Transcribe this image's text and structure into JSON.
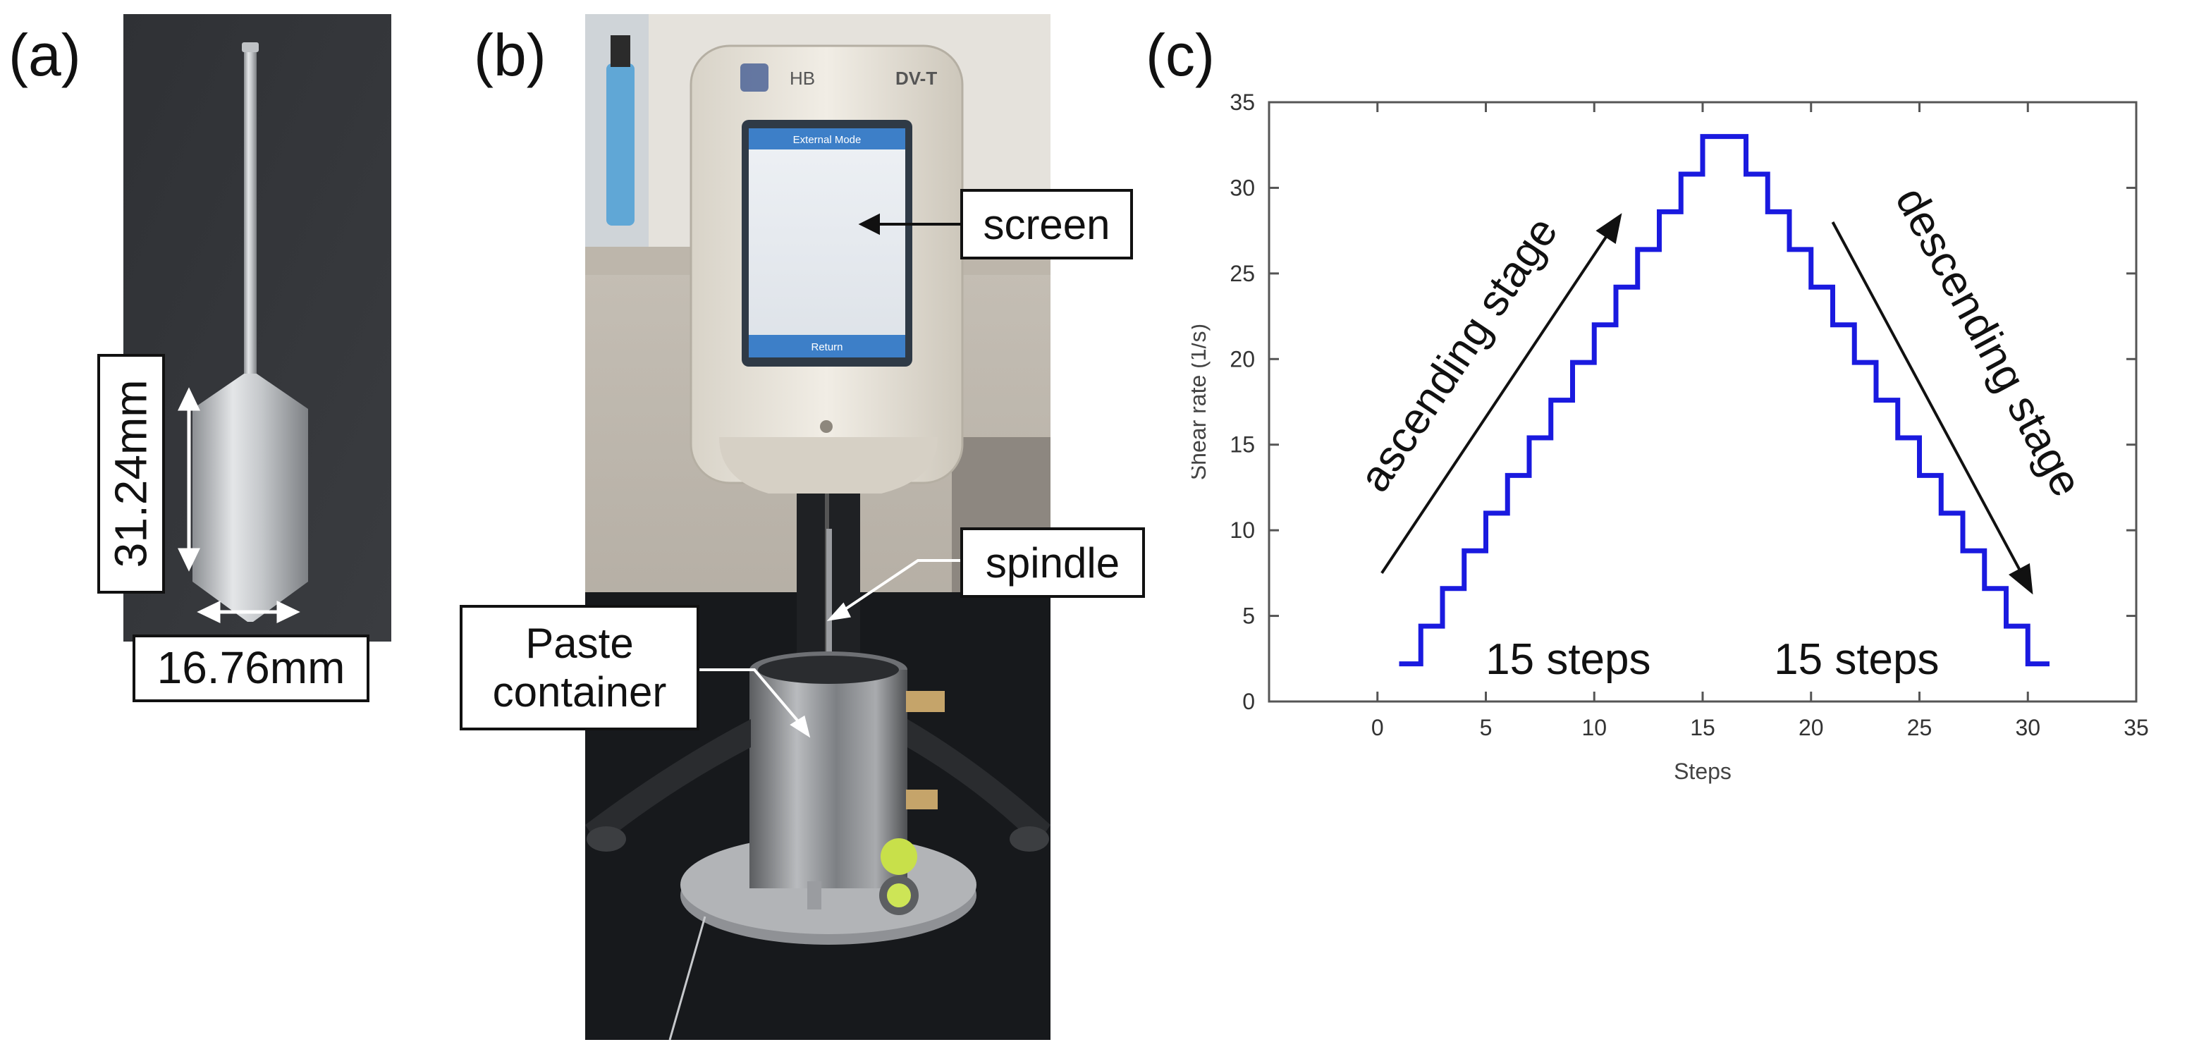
{
  "panels": {
    "a": {
      "label": "(a)",
      "dimensions": {
        "height": "31.24mm",
        "diameter": "16.76mm"
      }
    },
    "b": {
      "label": "(b)",
      "device": {
        "badge": "HB",
        "brand": "DV-T"
      },
      "screen_header": "External Mode",
      "screen_button": "Return",
      "callouts": {
        "screen": "screen",
        "spindle": "spindle",
        "container": "Paste container"
      }
    },
    "c": {
      "label": "(c)"
    }
  },
  "colors": {
    "series": "#1a1adf",
    "frame": "#555555",
    "tick_text": "#333333"
  },
  "chart_data": {
    "type": "line",
    "title": "",
    "xlabel": "Steps",
    "ylabel": "Shear rate (1/s)",
    "xlim": [
      -5,
      35
    ],
    "ylim": [
      0,
      35
    ],
    "xticks": [
      0,
      5,
      10,
      15,
      20,
      25,
      30,
      35
    ],
    "yticks": [
      0,
      5,
      10,
      15,
      20,
      25,
      30,
      35
    ],
    "grid": false,
    "step_style": "staircase",
    "series": [
      {
        "x": [
          1,
          2,
          3,
          4,
          5,
          6,
          7,
          8,
          9,
          10,
          11,
          12,
          13,
          14,
          15,
          16,
          17,
          18,
          19,
          20,
          21,
          22,
          23,
          24,
          25,
          26,
          27,
          28,
          29,
          30,
          31
        ],
        "values": [
          2.2,
          4.4,
          6.6,
          8.8,
          11.0,
          13.2,
          15.4,
          17.6,
          19.8,
          22.0,
          24.2,
          26.4,
          28.6,
          30.8,
          33.0,
          33.0,
          30.8,
          28.6,
          26.4,
          24.2,
          22.0,
          19.8,
          17.6,
          15.4,
          13.2,
          11.0,
          8.8,
          6.6,
          4.4,
          2.2,
          2.2
        ]
      }
    ],
    "annotations": {
      "ascending": "ascending stage",
      "descending": "descending stage",
      "steps_left": "15 steps",
      "steps_right": "15 steps"
    }
  }
}
